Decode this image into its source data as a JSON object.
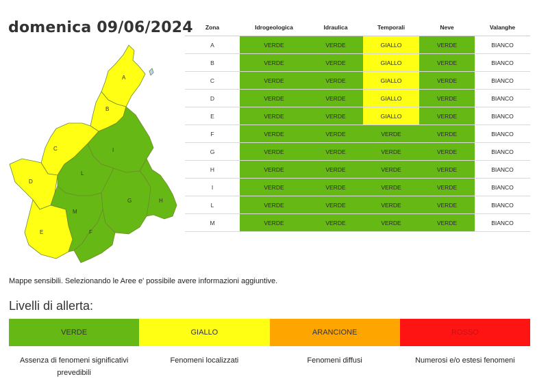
{
  "date_title": "domenica 09/06/2024",
  "colors": {
    "verde": "#66b814",
    "giallo": "#ffff14",
    "arancione": "#ffa500",
    "rosso": "#ff1414",
    "bianco": "#ffffff"
  },
  "table": {
    "headers": [
      "Zona",
      "Idrogeologica",
      "Idraulica",
      "Temporali",
      "Neve",
      "Valanghe"
    ],
    "rows": [
      {
        "zona": "A",
        "levels": [
          "VERDE",
          "VERDE",
          "GIALLO",
          "VERDE",
          "BIANCO"
        ]
      },
      {
        "zona": "B",
        "levels": [
          "VERDE",
          "VERDE",
          "GIALLO",
          "VERDE",
          "BIANCO"
        ]
      },
      {
        "zona": "C",
        "levels": [
          "VERDE",
          "VERDE",
          "GIALLO",
          "VERDE",
          "BIANCO"
        ]
      },
      {
        "zona": "D",
        "levels": [
          "VERDE",
          "VERDE",
          "GIALLO",
          "VERDE",
          "BIANCO"
        ]
      },
      {
        "zona": "E",
        "levels": [
          "VERDE",
          "VERDE",
          "GIALLO",
          "VERDE",
          "BIANCO"
        ]
      },
      {
        "zona": "F",
        "levels": [
          "VERDE",
          "VERDE",
          "VERDE",
          "VERDE",
          "BIANCO"
        ]
      },
      {
        "zona": "G",
        "levels": [
          "VERDE",
          "VERDE",
          "VERDE",
          "VERDE",
          "BIANCO"
        ]
      },
      {
        "zona": "H",
        "levels": [
          "VERDE",
          "VERDE",
          "VERDE",
          "VERDE",
          "BIANCO"
        ]
      },
      {
        "zona": "I",
        "levels": [
          "VERDE",
          "VERDE",
          "VERDE",
          "VERDE",
          "BIANCO"
        ]
      },
      {
        "zona": "L",
        "levels": [
          "VERDE",
          "VERDE",
          "VERDE",
          "VERDE",
          "BIANCO"
        ]
      },
      {
        "zona": "M",
        "levels": [
          "VERDE",
          "VERDE",
          "VERDE",
          "VERDE",
          "BIANCO"
        ]
      }
    ]
  },
  "map": {
    "zones": [
      {
        "id": "A",
        "level": "GIALLO"
      },
      {
        "id": "B",
        "level": "GIALLO"
      },
      {
        "id": "C",
        "level": "GIALLO"
      },
      {
        "id": "D",
        "level": "GIALLO"
      },
      {
        "id": "E",
        "level": "GIALLO"
      },
      {
        "id": "F",
        "level": "VERDE"
      },
      {
        "id": "G",
        "level": "VERDE"
      },
      {
        "id": "H",
        "level": "VERDE"
      },
      {
        "id": "I",
        "level": "VERDE"
      },
      {
        "id": "L",
        "level": "VERDE"
      },
      {
        "id": "M",
        "level": "VERDE"
      }
    ]
  },
  "note": "Mappe sensibili. Selezionando le Aree e' possibile avere informazioni aggiuntive.",
  "levels_title": "Livelli di allerta:",
  "legend": [
    {
      "label": "VERDE",
      "description": "Assenza di fenomeni significativi prevedibili",
      "color": "#66b814",
      "text_color": "#333333"
    },
    {
      "label": "GIALLO",
      "description": "Fenomeni localizzati",
      "color": "#ffff14",
      "text_color": "#333333"
    },
    {
      "label": "ARANCIONE",
      "description": "Fenomeni diffusi",
      "color": "#ffa500",
      "text_color": "#333333"
    },
    {
      "label": "ROSSO",
      "description": "Numerosi e/o estesi fenomeni",
      "color": "#ff1414",
      "text_color": "#cc1111"
    }
  ]
}
